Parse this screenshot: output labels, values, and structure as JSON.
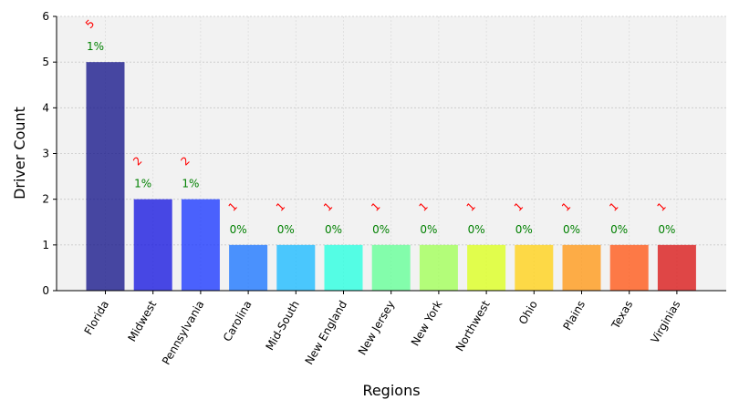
{
  "chart_data": {
    "type": "bar",
    "title": "",
    "xlabel": "Regions",
    "ylabel": "Driver Count",
    "ylim": [
      0,
      6
    ],
    "yticks": [
      0,
      1,
      2,
      3,
      4,
      5,
      6
    ],
    "grid": true,
    "categories": [
      "Florida",
      "Midwest",
      "Pennsylvania",
      "Carolina",
      "Mid-South",
      "New England",
      "New Jersey",
      "New York",
      "Northwest",
      "Ohio",
      "Plains",
      "Texas",
      "Virginias"
    ],
    "values": [
      5,
      2,
      2,
      1,
      1,
      1,
      1,
      1,
      1,
      1,
      1,
      1,
      1
    ],
    "value_labels": [
      "5",
      "2",
      "2",
      "1",
      "1",
      "1",
      "1",
      "1",
      "1",
      "1",
      "1",
      "1",
      "1"
    ],
    "percent_labels": [
      "1%",
      "1%",
      "1%",
      "0%",
      "0%",
      "0%",
      "0%",
      "0%",
      "0%",
      "0%",
      "0%",
      "0%",
      "0%"
    ],
    "colors": [
      "#1a1a8c",
      "#1c1ce0",
      "#1f3cff",
      "#1f78ff",
      "#1fbcff",
      "#2cffe0",
      "#66ff99",
      "#a3ff5a",
      "#dcff22",
      "#ffd21a",
      "#ff9a1a",
      "#ff5a1a",
      "#d91a1a"
    ]
  }
}
